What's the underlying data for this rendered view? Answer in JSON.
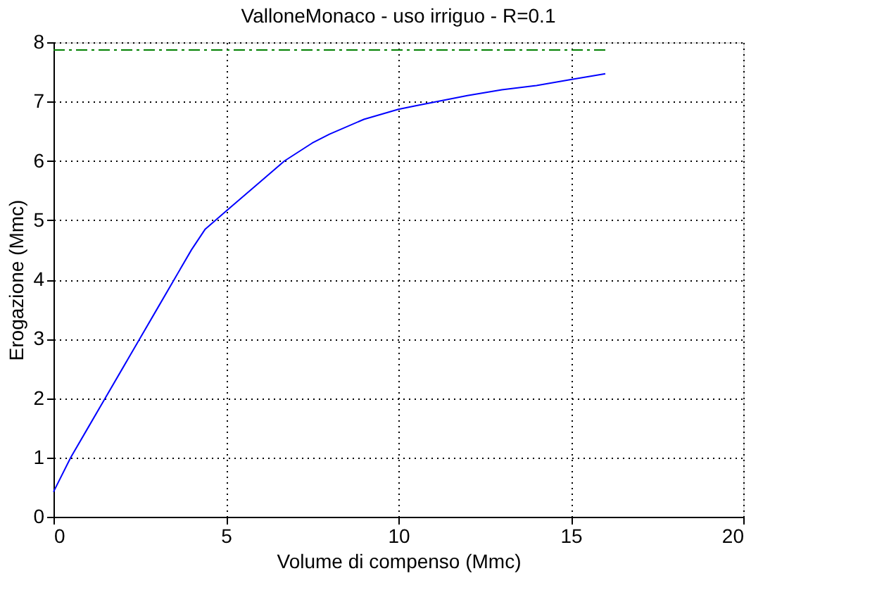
{
  "chart_data": {
    "type": "line",
    "title": "ValloneMonaco  -  uso irriguo  -   R=0.1",
    "xlabel": "Volume di compenso (Mmc)",
    "ylabel": "Erogazione (Mmc)",
    "xlim": [
      0,
      20
    ],
    "ylim": [
      0,
      8
    ],
    "xticks": [
      0,
      5,
      10,
      15,
      20
    ],
    "yticks": [
      0,
      1,
      2,
      3,
      4,
      5,
      6,
      7,
      8
    ],
    "grid": true,
    "series": [
      {
        "color": "#0000ff",
        "line_style": "solid",
        "x": [
          0,
          0.5,
          1,
          1.5,
          2,
          2.5,
          3,
          3.5,
          4,
          4.4,
          5,
          6,
          6.7,
          7.5,
          8,
          9,
          10,
          10.5,
          12,
          13,
          14,
          15,
          16
        ],
        "values": [
          0.42,
          1.0,
          1.5,
          2.0,
          2.5,
          3.0,
          3.5,
          4.0,
          4.5,
          4.85,
          5.15,
          5.65,
          6.0,
          6.3,
          6.45,
          6.7,
          6.87,
          6.93,
          7.1,
          7.2,
          7.27,
          7.37,
          7.47
        ]
      },
      {
        "color": "#008000",
        "line_style": "dashed",
        "x": [
          0,
          16
        ],
        "values": [
          7.87,
          7.87
        ]
      }
    ]
  }
}
